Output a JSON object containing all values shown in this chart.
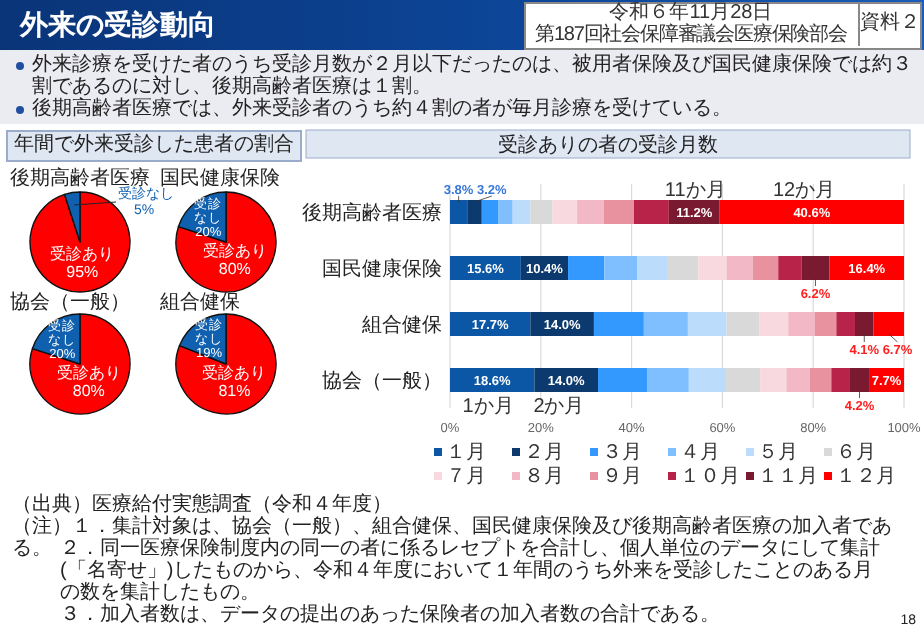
{
  "chart_data": [
    {
      "type": "other",
      "title": "外来の受診動向",
      "annotations": [
        "令和６年11月28日",
        "第187回社会保障審議会医療保険部会",
        "資料２",
        "外来診療を受けた者のうち受診月数が２月以下だったのは、被用者保険及び国民健康保険では約３割であるのに対し、後期高齢者医療は１割。",
        "後期高齢者医療では、外来受診者のうち約４割の者が毎月診療を受けている。",
        "年間で外来受診した患者の割合",
        "（出典）医療給付実態調査（令和４年度）",
        "（注）１．集計対象は、協会（一般）、組合健保、国民健康保険及び後期高齢者医療の加入者である。",
        "２．同一医療保険制度内の同一の者に係るレセプトを合計し、個人単位のデータにして集計(「名寄せ」)したものから、令和４年度において１年間のうち外来を受診したことのある月の数を集計したもの。",
        "３．加入者数は、データの提出のあった保険者の加入者数の合計である。",
        "18"
      ]
    },
    {
      "type": "pie",
      "title": "後期高齢者医療",
      "categories": [
        "受診あり",
        "受診なし"
      ],
      "values": [
        95,
        5
      ],
      "colors": [
        "#ff0000",
        "#1060b0"
      ],
      "value_labels": [
        "95%",
        "5%"
      ]
    },
    {
      "type": "pie",
      "title": "国民健康保険",
      "categories": [
        "受診あり",
        "受診なし"
      ],
      "values": [
        80,
        20
      ],
      "colors": [
        "#ff0000",
        "#1060b0"
      ],
      "value_labels": [
        "80%",
        "20%"
      ]
    },
    {
      "type": "pie",
      "title": "協会（一般）",
      "categories": [
        "受診あり",
        "受診なし"
      ],
      "values": [
        80,
        20
      ],
      "colors": [
        "#ff0000",
        "#1060b0"
      ],
      "value_labels": [
        "80%",
        "20%"
      ]
    },
    {
      "type": "pie",
      "title": "組合健保",
      "categories": [
        "受診あり",
        "受診なし"
      ],
      "values": [
        81,
        19
      ],
      "colors": [
        "#ff0000",
        "#1060b0"
      ],
      "value_labels": [
        "81%",
        "19%"
      ]
    },
    {
      "type": "bar",
      "orientation": "horizontal",
      "stacked": true,
      "title": "受診ありの者の受診月数",
      "categories": [
        "後期高齢者医療",
        "国民健康保険",
        "組合健保",
        "協会（一般）"
      ],
      "series": [
        {
          "name": "１月",
          "color": "#0b57a5",
          "values": [
            3.8,
            15.6,
            17.7,
            18.6
          ],
          "value_labels": [
            "3.8%",
            "15.6%",
            "17.7%",
            "18.6%"
          ]
        },
        {
          "name": "２月",
          "color": "#0d3a6e",
          "values": [
            3.2,
            10.4,
            14.0,
            14.0
          ],
          "value_labels": [
            "3.2%",
            "10.4%",
            "14.0%",
            "14.0%"
          ]
        },
        {
          "name": "３月",
          "color": "#3399ff",
          "values": [
            3.7,
            8.0,
            11.0,
            10.8
          ]
        },
        {
          "name": "４月",
          "color": "#7fbfff",
          "values": [
            3.1,
            7.3,
            9.7,
            9.2
          ]
        },
        {
          "name": "５月",
          "color": "#bcdcfb",
          "values": [
            3.9,
            6.5,
            8.5,
            8.2
          ]
        },
        {
          "name": "６月",
          "color": "#d9d9d9",
          "values": [
            4.9,
            6.9,
            7.3,
            7.5
          ]
        },
        {
          "name": "７月",
          "color": "#f8d9e0",
          "values": [
            5.4,
            6.2,
            6.3,
            5.8
          ]
        },
        {
          "name": "８月",
          "color": "#f2b8c6",
          "values": [
            5.9,
            5.8,
            5.8,
            5.1
          ]
        },
        {
          "name": "９月",
          "color": "#e8919f",
          "values": [
            6.6,
            5.6,
            4.8,
            4.8
          ]
        },
        {
          "name": "１０月",
          "color": "#b8234a",
          "values": [
            7.7,
            5.1,
            4.1,
            4.1
          ]
        },
        {
          "name": "１１月",
          "color": "#7a1a30",
          "values": [
            11.2,
            6.2,
            4.1,
            4.2
          ],
          "value_labels": [
            "11.2%",
            "6.2%",
            "4.1%",
            "4.2%"
          ]
        },
        {
          "name": "１２月",
          "color": "#ff0000",
          "values": [
            40.6,
            16.4,
            6.7,
            7.7
          ],
          "value_labels": [
            "40.6%",
            "16.4%",
            "6.7%",
            "7.7%"
          ]
        }
      ],
      "xlim": [
        0,
        100
      ],
      "xticks": [
        {
          "value": 0,
          "label": "0%"
        },
        {
          "value": 20,
          "label": "20%"
        },
        {
          "value": 40,
          "label": "40%"
        },
        {
          "value": 60,
          "label": "60%"
        },
        {
          "value": 80,
          "label": "80%"
        },
        {
          "value": 100,
          "label": "100%"
        }
      ],
      "grid": "x",
      "legend": "bottom",
      "annotations": [
        "11か月",
        "12か月",
        "1か月",
        "2か月"
      ]
    }
  ]
}
